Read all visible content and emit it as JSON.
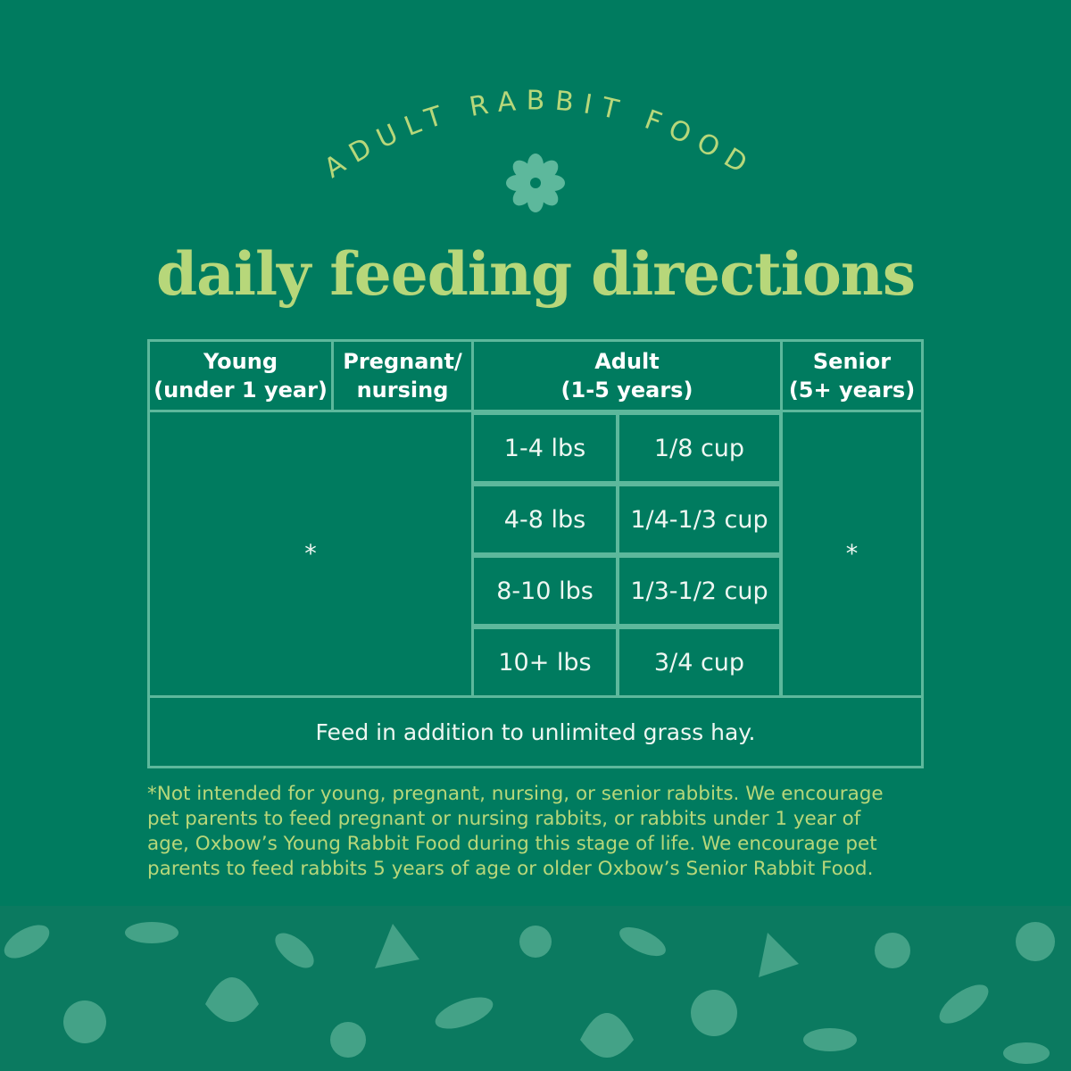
{
  "header": {
    "arc_label": "ADULT RABBIT FOOD",
    "title": "daily feeding directions"
  },
  "table": {
    "headers": [
      [
        "Young",
        "(under 1 year)"
      ],
      [
        "Pregnant/",
        "nursing"
      ],
      [
        "Adult",
        "(1-5 years)"
      ],
      [
        "Senior",
        "(5+ years)"
      ]
    ],
    "young_pregnant_cell": "*",
    "senior_cell": "*",
    "adult_rows": [
      [
        "1-4 lbs",
        "1/8 cup"
      ],
      [
        "4-8 lbs",
        "1/4-1/3 cup"
      ],
      [
        "8-10 lbs",
        "1/3-1/2 cup"
      ],
      [
        "10+ lbs",
        "3/4 cup"
      ]
    ],
    "note": "Feed in addition to unlimited grass hay."
  },
  "footnote": [
    "*Not intended for young, pregnant, nursing, or senior rabbits. We encourage",
    "pet parents to feed pregnant or nursing rabbits, or rabbits under 1 year of",
    "age, Oxbow’s Young Rabbit Food during this stage of life. We encourage pet",
    "parents to feed rabbits 5 years of age or older Oxbow’s Senior Rabbit Food."
  ]
}
